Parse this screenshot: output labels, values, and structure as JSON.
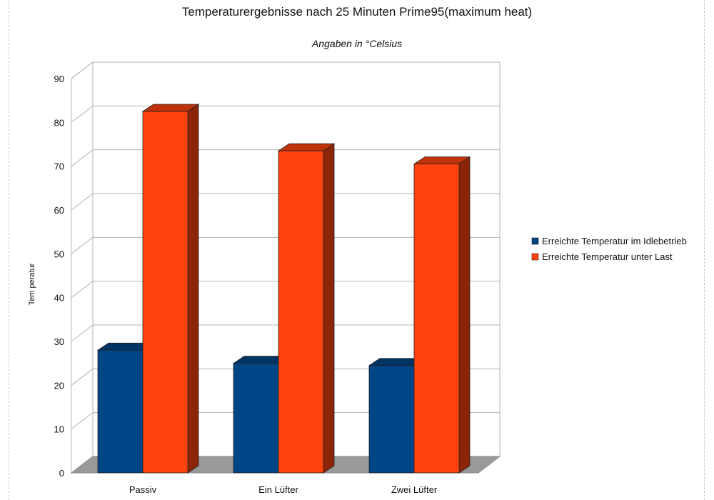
{
  "chart_data": {
    "type": "bar",
    "title": "Temperaturergebnisse nach 25 Minuten Prime95(maximum heat)",
    "subtitle": "Angaben in °Celsius",
    "xlabel": "",
    "ylabel": "Tem peratur",
    "categories": [
      "Passiv",
      "Ein Lüfter",
      "Zwei Lüfter"
    ],
    "series": [
      {
        "name": "Erreichte Temperatur im Idlebetrieb",
        "color": "#004586",
        "values": [
          28,
          25,
          24.5
        ]
      },
      {
        "name": "Erreichte Temperatur unter Last",
        "color": "#ff420e",
        "values": [
          82.5,
          73.5,
          70.5
        ]
      }
    ],
    "ylim": [
      0,
      90
    ],
    "yticks": [
      0,
      10,
      20,
      30,
      40,
      50,
      60,
      70,
      80,
      90
    ],
    "grid": true,
    "legend_position": "right",
    "style": "3d-bar"
  }
}
